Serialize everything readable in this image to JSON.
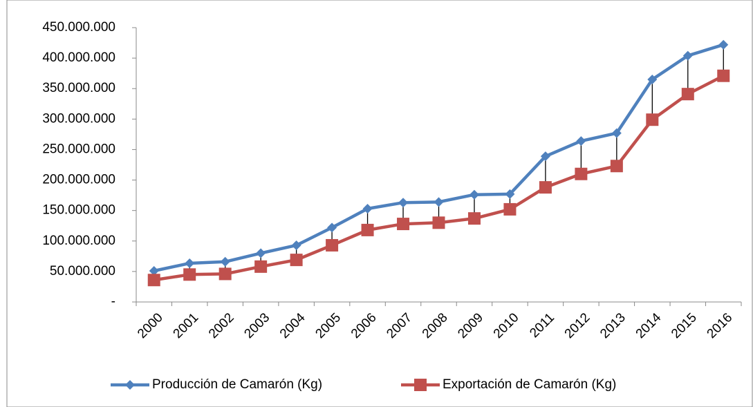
{
  "chart_data": {
    "type": "line",
    "categories": [
      "2000",
      "2001",
      "2002",
      "2003",
      "2004",
      "2005",
      "2006",
      "2007",
      "2008",
      "2009",
      "2010",
      "2011",
      "2012",
      "2013",
      "2014",
      "2015",
      "2016"
    ],
    "series": [
      {
        "name": "Producción de Camarón (Kg)",
        "color": "#4f81bd",
        "marker": "diamond",
        "values": [
          51000000,
          63500000,
          66000000,
          80000000,
          93000000,
          122000000,
          153000000,
          163000000,
          164000000,
          176000000,
          177000000,
          239000000,
          264000000,
          277000000,
          365000000,
          404000000,
          422000000
        ]
      },
      {
        "name": "Exportación de Camarón (Kg)",
        "color": "#c0504d",
        "marker": "square",
        "values": [
          36000000,
          45000000,
          46000000,
          58000000,
          69000000,
          93000000,
          118000000,
          128000000,
          130000000,
          137000000,
          152000000,
          188000000,
          210000000,
          223000000,
          299000000,
          341000000,
          371000000
        ]
      }
    ],
    "ylim": [
      0,
      450000000
    ],
    "yticks": [
      {
        "value": 0,
        "label": "-"
      },
      {
        "value": 50000000,
        "label": "50.000.000"
      },
      {
        "value": 100000000,
        "label": "100.000.000"
      },
      {
        "value": 150000000,
        "label": "150.000.000"
      },
      {
        "value": 200000000,
        "label": "200.000.000"
      },
      {
        "value": 250000000,
        "label": "250.000.000"
      },
      {
        "value": 300000000,
        "label": "300.000.000"
      },
      {
        "value": 350000000,
        "label": "350.000.000"
      },
      {
        "value": 400000000,
        "label": "400.000.000"
      },
      {
        "value": 450000000,
        "label": "450.000.000"
      }
    ],
    "high_low_lines": true,
    "legend": "bottom"
  }
}
